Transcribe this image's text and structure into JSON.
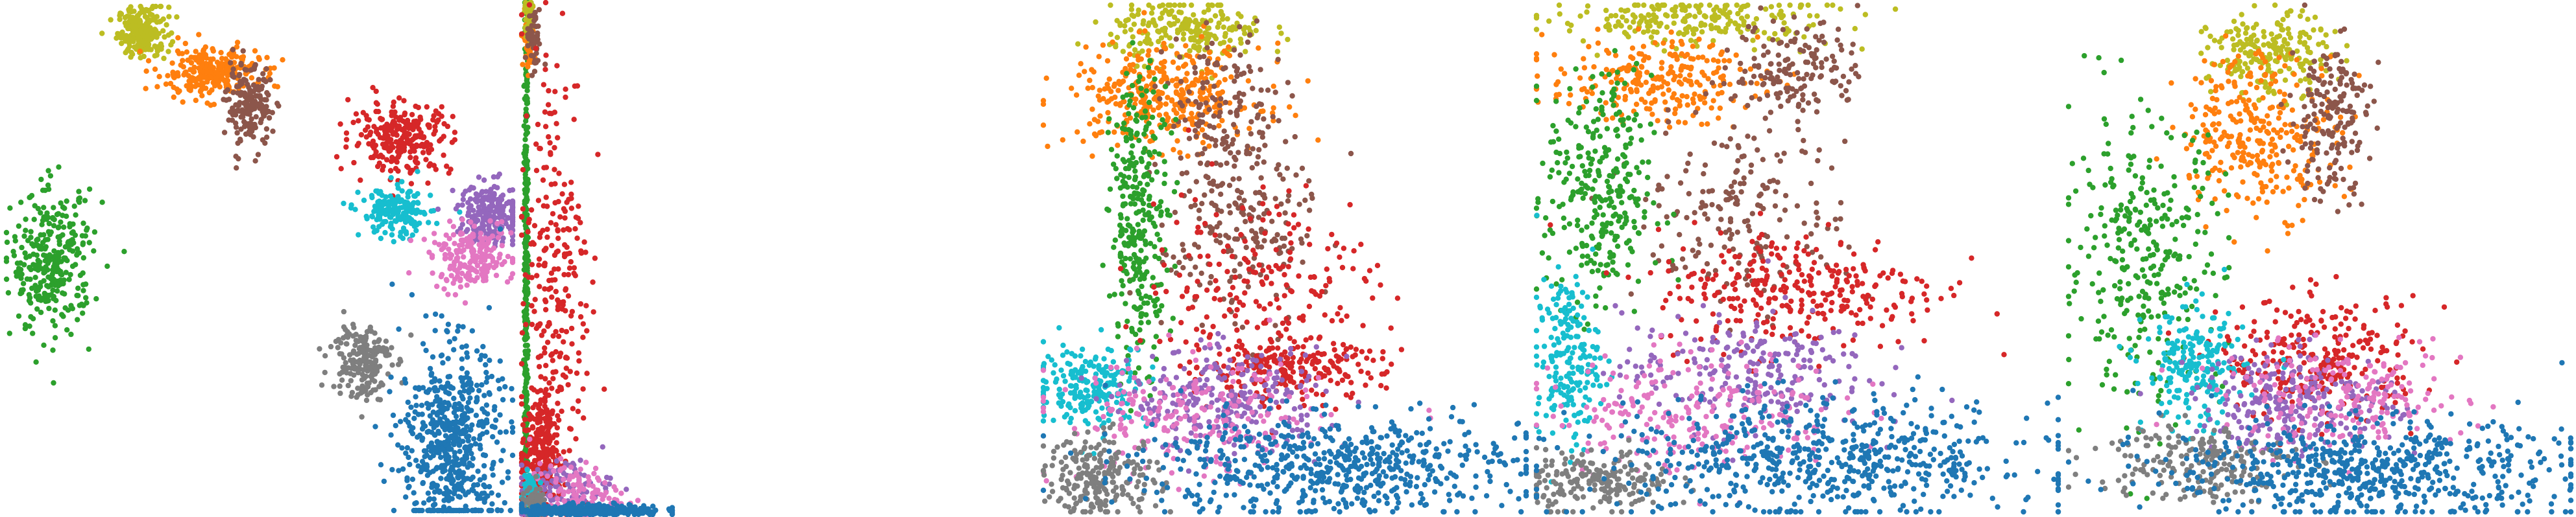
{
  "colors": {
    "c0": "#1f77b4",
    "c1": "#ff7f0e",
    "c2": "#2ca02c",
    "c3": "#d62728",
    "c4": "#9467bd",
    "c5": "#8c564b",
    "c6": "#e377c2",
    "c7": "#7f7f7f",
    "c8": "#bcbd22",
    "c9": "#17becf"
  },
  "chart_data": [
    {
      "type": "scatter",
      "title": "",
      "xlabel": "",
      "ylabel": "",
      "axes_visible": false,
      "grid": false,
      "legend": "none",
      "xlim": [
        0,
        100
      ],
      "ylim": [
        0,
        100
      ],
      "series": [
        {
          "color": "#bcbd22",
          "clusters": [
            {
              "cx": 27,
              "cy": 95,
              "sx": 2.5,
              "sy": 2.5,
              "n": 220
            }
          ]
        },
        {
          "color": "#ff7f0e",
          "clusters": [
            {
              "cx": 40,
              "cy": 87,
              "sx": 5,
              "sy": 2.5,
              "n": 260
            }
          ]
        },
        {
          "color": "#8c564b",
          "clusters": [
            {
              "cx": 48,
              "cy": 80,
              "sx": 2.2,
              "sy": 4,
              "n": 180
            }
          ]
        },
        {
          "color": "#d62728",
          "clusters": [
            {
              "cx": 78,
              "cy": 74,
              "sx": 5,
              "sy": 3.5,
              "n": 260
            }
          ]
        },
        {
          "color": "#2ca02c",
          "clusters": [
            {
              "cx": 9,
              "cy": 49,
              "sx": 4,
              "sy": 7,
              "n": 320
            }
          ]
        },
        {
          "color": "#17becf",
          "clusters": [
            {
              "cx": 77,
              "cy": 59,
              "sx": 3.5,
              "sy": 2.5,
              "n": 180
            }
          ]
        },
        {
          "color": "#9467bd",
          "clusters": [
            {
              "cx": 96,
              "cy": 59,
              "sx": 3.5,
              "sy": 3,
              "n": 230
            }
          ]
        },
        {
          "color": "#e377c2",
          "clusters": [
            {
              "cx": 92,
              "cy": 50,
              "sx": 4,
              "sy": 3,
              "n": 200
            }
          ]
        },
        {
          "color": "#7f7f7f",
          "clusters": [
            {
              "cx": 70,
              "cy": 30,
              "sx": 3,
              "sy": 4,
              "n": 180
            }
          ]
        },
        {
          "color": "#1f77b4",
          "clusters": [
            {
              "cx": 88,
              "cy": 13,
              "sx": 5,
              "sy": 10,
              "n": 600
            }
          ]
        }
      ]
    },
    {
      "type": "scatter",
      "title": "",
      "xlabel": "",
      "ylabel": "",
      "axes_visible": false,
      "grid": false,
      "legend": "none",
      "xlim": [
        0,
        100
      ],
      "ylim": [
        0,
        100
      ],
      "series": [
        {
          "color": "#2ca02c",
          "clusters": [
            {
              "cx": 3,
              "cy": 50,
              "sx": 0.6,
              "sy": 30,
              "n": 350
            }
          ]
        },
        {
          "color": "#ff7f0e",
          "clusters": [
            {
              "cx": 5,
              "cy": 93,
              "sx": 2,
              "sy": 3,
              "n": 80
            }
          ]
        },
        {
          "color": "#bcbd22",
          "clusters": [
            {
              "cx": 5,
              "cy": 97,
              "sx": 1.5,
              "sy": 2,
              "n": 50
            }
          ]
        },
        {
          "color": "#8c564b",
          "clusters": [
            {
              "cx": 8,
              "cy": 92,
              "sx": 2.5,
              "sy": 3,
              "n": 50
            }
          ]
        },
        {
          "color": "#d62728",
          "clusters": [
            {
              "cx": 12,
              "cy": 12,
              "sx": 6,
              "sy": 6,
              "n": 250
            },
            {
              "cx": 22,
              "cy": 45,
              "sx": 12,
              "sy": 25,
              "n": 280
            }
          ]
        },
        {
          "color": "#9467bd",
          "clusters": [
            {
              "cx": 30,
              "cy": 5,
              "sx": 15,
              "sy": 3,
              "n": 100
            }
          ]
        },
        {
          "color": "#e377c2",
          "clusters": [
            {
              "cx": 35,
              "cy": 4,
              "sx": 15,
              "sy": 3,
              "n": 120
            }
          ]
        },
        {
          "color": "#17becf",
          "clusters": [
            {
              "cx": 5,
              "cy": 4,
              "sx": 3,
              "sy": 3,
              "n": 60
            }
          ]
        },
        {
          "color": "#7f7f7f",
          "clusters": [
            {
              "cx": 8,
              "cy": 2,
              "sx": 4,
              "sy": 1.5,
              "n": 80
            }
          ]
        },
        {
          "color": "#1f77b4",
          "clusters": [
            {
              "cx": 45,
              "cy": 0.8,
              "sx": 25,
              "sy": 0.6,
              "n": 300
            }
          ]
        }
      ]
    },
    {
      "type": "scatter",
      "title": "",
      "xlabel": "",
      "ylabel": "",
      "axes_visible": false,
      "grid": false,
      "legend": "none",
      "xlim": [
        0,
        100
      ],
      "ylim": [
        0,
        100
      ],
      "series": [
        {
          "color": "#bcbd22",
          "clusters": [
            {
              "cx": 30,
              "cy": 95,
              "sx": 8,
              "sy": 3,
              "n": 220
            }
          ]
        },
        {
          "color": "#ff7f0e",
          "clusters": [
            {
              "cx": 25,
              "cy": 82,
              "sx": 10,
              "sy": 5,
              "n": 350
            }
          ]
        },
        {
          "color": "#8c564b",
          "clusters": [
            {
              "cx": 38,
              "cy": 78,
              "sx": 6,
              "sy": 8,
              "n": 150
            },
            {
              "cx": 40,
              "cy": 55,
              "sx": 8,
              "sy": 10,
              "n": 200
            }
          ]
        },
        {
          "color": "#2ca02c",
          "clusters": [
            {
              "cx": 20,
              "cy": 58,
              "sx": 3,
              "sy": 14,
              "n": 300
            }
          ]
        },
        {
          "color": "#d62728",
          "clusters": [
            {
              "cx": 45,
              "cy": 45,
              "sx": 12,
              "sy": 10,
              "n": 200
            },
            {
              "cx": 50,
              "cy": 28,
              "sx": 10,
              "sy": 3,
              "n": 220
            }
          ]
        },
        {
          "color": "#17becf",
          "clusters": [
            {
              "cx": 10,
              "cy": 25,
              "sx": 6,
              "sy": 4,
              "n": 220
            }
          ]
        },
        {
          "color": "#9467bd",
          "clusters": [
            {
              "cx": 38,
              "cy": 22,
              "sx": 10,
              "sy": 5,
              "n": 250
            }
          ]
        },
        {
          "color": "#e377c2",
          "clusters": [
            {
              "cx": 30,
              "cy": 18,
              "sx": 14,
              "sy": 6,
              "n": 220
            }
          ]
        },
        {
          "color": "#7f7f7f",
          "clusters": [
            {
              "cx": 12,
              "cy": 7,
              "sx": 6,
              "sy": 4,
              "n": 220
            }
          ]
        },
        {
          "color": "#1f77b4",
          "clusters": [
            {
              "cx": 60,
              "cy": 9,
              "sx": 20,
              "sy": 5,
              "n": 600
            }
          ]
        }
      ]
    },
    {
      "type": "scatter",
      "title": "",
      "xlabel": "",
      "ylabel": "",
      "axes_visible": false,
      "grid": false,
      "legend": "none",
      "xlim": [
        0,
        100
      ],
      "ylim": [
        0,
        100
      ],
      "series": [
        {
          "color": "#bcbd22",
          "clusters": [
            {
              "cx": 30,
              "cy": 97,
              "sx": 14,
              "sy": 2.5,
              "n": 220
            }
          ]
        },
        {
          "color": "#ff7f0e",
          "clusters": [
            {
              "cx": 22,
              "cy": 85,
              "sx": 10,
              "sy": 4,
              "n": 250
            }
          ]
        },
        {
          "color": "#8c564b",
          "clusters": [
            {
              "cx": 50,
              "cy": 88,
              "sx": 6,
              "sy": 5,
              "n": 150
            },
            {
              "cx": 40,
              "cy": 60,
              "sx": 10,
              "sy": 10,
              "n": 200
            }
          ]
        },
        {
          "color": "#2ca02c",
          "clusters": [
            {
              "cx": 12,
              "cy": 62,
              "sx": 5,
              "sy": 12,
              "n": 300
            }
          ]
        },
        {
          "color": "#d62728",
          "clusters": [
            {
              "cx": 50,
              "cy": 44,
              "sx": 14,
              "sy": 6,
              "n": 300
            }
          ]
        },
        {
          "color": "#17becf",
          "clusters": [
            {
              "cx": 6,
              "cy": 30,
              "sx": 3,
              "sy": 8,
              "n": 200
            }
          ]
        },
        {
          "color": "#9467bd",
          "clusters": [
            {
              "cx": 40,
              "cy": 28,
              "sx": 12,
              "sy": 6,
              "n": 230
            }
          ]
        },
        {
          "color": "#e377c2",
          "clusters": [
            {
              "cx": 30,
              "cy": 20,
              "sx": 14,
              "sy": 6,
              "n": 230
            }
          ]
        },
        {
          "color": "#7f7f7f",
          "clusters": [
            {
              "cx": 12,
              "cy": 6,
              "sx": 7,
              "sy": 3,
              "n": 200
            }
          ]
        },
        {
          "color": "#1f77b4",
          "clusters": [
            {
              "cx": 55,
              "cy": 10,
              "sx": 22,
              "sy": 6,
              "n": 600
            }
          ]
        }
      ]
    },
    {
      "type": "scatter",
      "title": "",
      "xlabel": "",
      "ylabel": "",
      "axes_visible": false,
      "grid": false,
      "legend": "none",
      "xlim": [
        0,
        100
      ],
      "ylim": [
        0,
        100
      ],
      "series": [
        {
          "color": "#bcbd22",
          "clusters": [
            {
              "cx": 40,
              "cy": 90,
              "sx": 6,
              "sy": 4,
              "n": 220
            }
          ]
        },
        {
          "color": "#ff7f0e",
          "clusters": [
            {
              "cx": 38,
              "cy": 75,
              "sx": 8,
              "sy": 8,
              "n": 300
            }
          ]
        },
        {
          "color": "#8c564b",
          "clusters": [
            {
              "cx": 52,
              "cy": 78,
              "sx": 4,
              "sy": 8,
              "n": 180
            }
          ]
        },
        {
          "color": "#2ca02c",
          "clusters": [
            {
              "cx": 15,
              "cy": 50,
              "sx": 8,
              "sy": 14,
              "n": 320
            }
          ]
        },
        {
          "color": "#d62728",
          "clusters": [
            {
              "cx": 50,
              "cy": 30,
              "sx": 10,
              "sy": 6,
              "n": 280
            }
          ]
        },
        {
          "color": "#17becf",
          "clusters": [
            {
              "cx": 25,
              "cy": 28,
              "sx": 5,
              "sy": 6,
              "n": 200
            }
          ]
        },
        {
          "color": "#9467bd",
          "clusters": [
            {
              "cx": 45,
              "cy": 22,
              "sx": 10,
              "sy": 5,
              "n": 250
            }
          ]
        },
        {
          "color": "#e377c2",
          "clusters": [
            {
              "cx": 55,
              "cy": 22,
              "sx": 12,
              "sy": 5,
              "n": 200
            }
          ]
        },
        {
          "color": "#7f7f7f",
          "clusters": [
            {
              "cx": 25,
              "cy": 10,
              "sx": 10,
              "sy": 4,
              "n": 200
            }
          ]
        },
        {
          "color": "#1f77b4",
          "clusters": [
            {
              "cx": 60,
              "cy": 8,
              "sx": 20,
              "sy": 5,
              "n": 600
            }
          ]
        }
      ]
    }
  ]
}
